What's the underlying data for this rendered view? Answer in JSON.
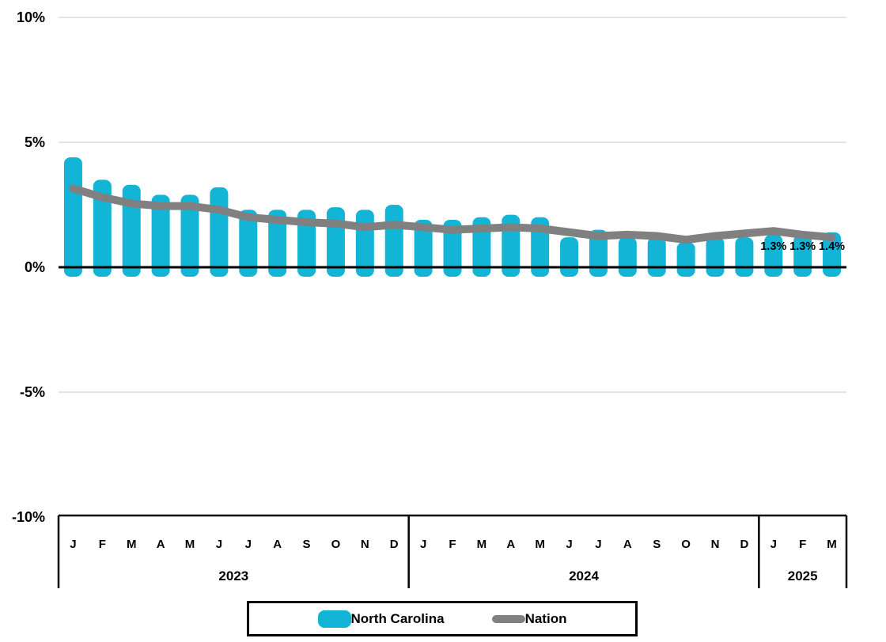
{
  "chart_data": {
    "type": "combo-bar-line",
    "title": "",
    "unit": "%",
    "categories": [
      "J",
      "F",
      "M",
      "A",
      "M",
      "J",
      "J",
      "A",
      "S",
      "O",
      "N",
      "D",
      "J",
      "F",
      "M",
      "A",
      "M",
      "J",
      "J",
      "A",
      "S",
      "O",
      "N",
      "D",
      "J",
      "F",
      "M"
    ],
    "year_groups": [
      {
        "label": "2023",
        "start_index": 0,
        "month_count": 12
      },
      {
        "label": "2024",
        "start_index": 12,
        "month_count": 12
      },
      {
        "label": "2025",
        "start_index": 24,
        "month_count": 3
      }
    ],
    "series": [
      {
        "name": "North Carolina",
        "type": "bar",
        "color": "#12B5D6",
        "values": [
          4.4,
          3.5,
          3.3,
          2.9,
          2.9,
          3.2,
          2.3,
          2.3,
          2.3,
          2.4,
          2.3,
          2.5,
          1.9,
          1.9,
          2.0,
          2.1,
          2.0,
          1.2,
          1.5,
          1.2,
          1.2,
          1.0,
          1.2,
          1.2,
          1.3,
          1.3,
          1.4
        ]
      },
      {
        "name": "Nation",
        "type": "line",
        "color": "#808080",
        "values": [
          3.15,
          2.8,
          2.55,
          2.45,
          2.45,
          2.3,
          2.0,
          1.9,
          1.8,
          1.75,
          1.6,
          1.7,
          1.6,
          1.5,
          1.55,
          1.6,
          1.55,
          1.4,
          1.25,
          1.3,
          1.25,
          1.1,
          1.25,
          1.35,
          1.45,
          1.3,
          1.2
        ]
      }
    ],
    "end_labels": {
      "start_index": 24,
      "labels": [
        "1.3%",
        "1.3%",
        "1.4%"
      ]
    },
    "y_axis": {
      "ylim": [
        -10,
        10
      ],
      "ticks": [
        {
          "label": "10%",
          "value": 10
        },
        {
          "label": "5%",
          "value": 5
        },
        {
          "label": "0%",
          "value": 0
        },
        {
          "label": "-5%",
          "value": -5
        },
        {
          "label": "-10%",
          "value": -10
        }
      ],
      "gridlines": true,
      "gridline_color": "#DCDCDC",
      "zero_line_color": "#000000"
    },
    "legend_position": "bottom"
  }
}
